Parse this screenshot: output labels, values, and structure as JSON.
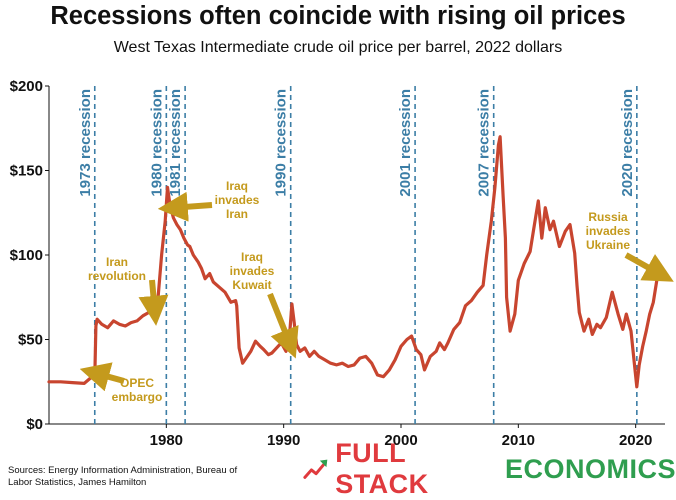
{
  "chart_data": {
    "type": "line",
    "title": "Recessions often coincide with rising oil prices",
    "subtitle": "West Texas Intermediate crude oil price per barrel, 2022 dollars",
    "xlabel": "",
    "ylabel": "",
    "xlim": [
      1970,
      2022.5
    ],
    "ylim": [
      0,
      200
    ],
    "x_ticks": [
      1980,
      1990,
      2000,
      2010,
      2020
    ],
    "y_ticks": [
      0,
      50,
      100,
      150,
      200
    ],
    "y_tick_labels": [
      "$0",
      "$50",
      "$100",
      "$150",
      "$200"
    ],
    "grid": false,
    "line_color": "#c8452f",
    "recession_color": "#3c7ea6",
    "annotation_color": "#c49a1d",
    "recessions": [
      {
        "x": 1973.9,
        "label": "1973 recession"
      },
      {
        "x": 1980.0,
        "label": "1980 recession"
      },
      {
        "x": 1981.6,
        "label": "1981 recession"
      },
      {
        "x": 1990.6,
        "label": "1990 recession"
      },
      {
        "x": 2001.2,
        "label": "2001 recession"
      },
      {
        "x": 2007.9,
        "label": "2007 recession"
      },
      {
        "x": 2020.1,
        "label": "2020 recession"
      }
    ],
    "annotations": [
      {
        "lines": [
          "OPEC",
          "embargo"
        ],
        "arrow_to": [
          1974.0,
          30
        ]
      },
      {
        "lines": [
          "Iran",
          "revolution"
        ],
        "arrow_to": [
          1979.0,
          68
        ]
      },
      {
        "lines": [
          "Iraq",
          "invades",
          "Iran"
        ],
        "arrow_to": [
          1980.7,
          128
        ]
      },
      {
        "lines": [
          "Iraq",
          "invades",
          "Kuwait"
        ],
        "arrow_to": [
          1990.5,
          48
        ]
      },
      {
        "lines": [
          "Russia",
          "invades",
          "Ukraine"
        ],
        "arrow_to": [
          2022.0,
          89
        ]
      }
    ],
    "series": [
      {
        "x": [
          1970.0,
          1971.0,
          1972.0,
          1973.0,
          1973.5,
          1973.9,
          1974.0,
          1974.1,
          1974.5,
          1975.0,
          1975.5,
          1976.0,
          1976.5,
          1977.0,
          1977.5,
          1978.0,
          1978.5,
          1979.0,
          1979.3,
          1979.6,
          1979.9,
          1980.1,
          1980.3,
          1980.6,
          1980.9,
          1981.2,
          1981.5,
          1981.8,
          1982.0,
          1982.3,
          1982.7,
          1983.0,
          1983.3,
          1983.7,
          1984.0,
          1984.5,
          1985.0,
          1985.5,
          1985.9,
          1986.0,
          1986.2,
          1986.5,
          1986.8,
          1987.2,
          1987.6,
          1988.0,
          1988.3,
          1988.7,
          1989.0,
          1989.4,
          1989.8,
          1990.2,
          1990.5,
          1990.7,
          1990.9,
          1991.1,
          1991.4,
          1991.8,
          1992.2,
          1992.6,
          1993.0,
          1993.5,
          1994.0,
          1994.5,
          1995.0,
          1995.5,
          1996.0,
          1996.5,
          1997.0,
          1997.5,
          1998.0,
          1998.5,
          1999.0,
          1999.5,
          2000.0,
          2000.5,
          2000.9,
          2001.3,
          2001.7,
          2002.0,
          2002.5,
          2003.0,
          2003.3,
          2003.7,
          2004.0,
          2004.5,
          2005.0,
          2005.5,
          2006.0,
          2006.5,
          2007.0,
          2007.3,
          2007.7,
          2008.0,
          2008.3,
          2008.45,
          2008.7,
          2008.9,
          2009.0,
          2009.3,
          2009.7,
          2010.0,
          2010.5,
          2011.0,
          2011.3,
          2011.7,
          2012.0,
          2012.3,
          2012.7,
          2013.0,
          2013.5,
          2014.0,
          2014.4,
          2014.8,
          2015.0,
          2015.2,
          2015.6,
          2016.0,
          2016.3,
          2016.7,
          2017.0,
          2017.5,
          2018.0,
          2018.5,
          2018.9,
          2019.2,
          2019.6,
          2019.9,
          2020.1,
          2020.3,
          2020.6,
          2020.9,
          2021.2,
          2021.5,
          2021.8,
          2022.0
        ],
        "y": [
          25,
          25,
          24.5,
          24,
          27,
          28,
          58,
          62,
          59,
          57,
          61,
          59,
          58,
          60,
          61,
          64,
          66,
          67,
          75,
          100,
          120,
          140,
          130,
          122,
          118,
          115,
          110,
          106,
          105,
          100,
          96,
          92,
          86,
          89,
          84,
          81,
          78,
          72,
          73,
          70,
          45,
          36,
          39,
          43,
          49,
          46,
          44,
          41,
          42,
          45,
          48,
          43,
          52,
          71,
          60,
          47,
          43,
          45,
          40,
          43,
          40,
          38,
          36,
          35,
          36,
          34,
          35,
          39,
          40,
          36,
          29,
          28,
          32,
          38,
          46,
          50,
          52,
          44,
          41,
          32,
          40,
          43,
          48,
          44,
          48,
          56,
          60,
          70,
          73,
          78,
          82,
          100,
          120,
          140,
          165,
          170,
          135,
          110,
          75,
          55,
          65,
          85,
          95,
          102,
          115,
          132,
          110,
          128,
          115,
          120,
          105,
          114,
          118,
          101,
          82,
          66,
          55,
          62,
          53,
          59,
          57,
          63,
          78,
          65,
          56,
          65,
          55,
          35,
          22,
          35,
          46,
          55,
          65,
          72,
          85,
          91
        ]
      }
    ]
  },
  "sources_text": "Sources: Energy Information Administration, Bureau of Labor Statistics, James Hamilton",
  "brand": {
    "part1": "FULL STACK",
    "part2": "ECONOMICS",
    "logo_icon": "trending-up-chart-icon"
  }
}
